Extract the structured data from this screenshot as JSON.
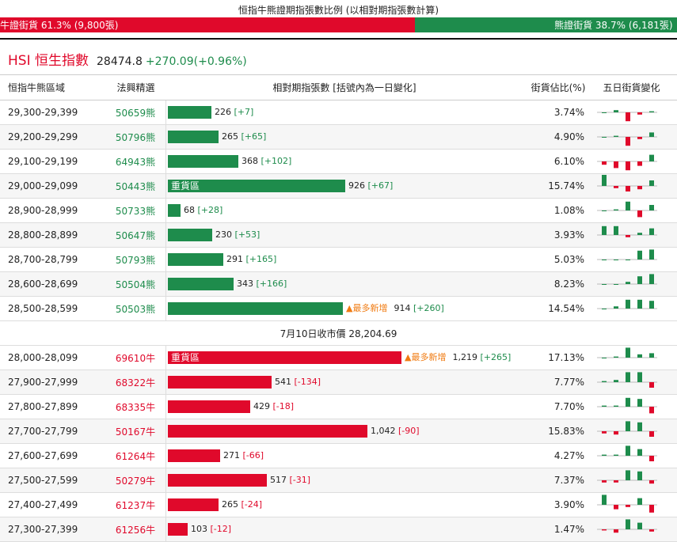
{
  "header": {
    "title": "恒指牛熊證期指張數比例 (以相對期指張數計算)",
    "bull_label": "牛證街貨 61.3% (9,800張)",
    "bear_label": "熊證街貨 38.7% (6,181張)",
    "bull_pct": 61.3,
    "bear_pct": 38.7
  },
  "index": {
    "name": "HSI 恒生指數",
    "price": "28474.8",
    "change": "+270.09(+0.96%)"
  },
  "columns": [
    "恒指牛熊區域",
    "法興精選",
    "相對期指張數 [括號內為一日變化]",
    "街貨佔比(%)",
    "五日街貨變化"
  ],
  "bear_rows": [
    {
      "range": "29,300-29,399",
      "code": "50659熊",
      "qty": 226,
      "qty_text": "226",
      "chg": "[+7]",
      "chg_sign": "pos",
      "pct": "3.74%",
      "spark": [
        0,
        2,
        -8,
        -2,
        1
      ]
    },
    {
      "range": "29,200-29,299",
      "code": "50796熊",
      "qty": 265,
      "qty_text": "265",
      "chg": "[+65]",
      "chg_sign": "pos",
      "pct": "4.90%",
      "spark": [
        0,
        1,
        -8,
        -2,
        4
      ]
    },
    {
      "range": "29,100-29,199",
      "code": "64943熊",
      "qty": 368,
      "qty_text": "368",
      "chg": "[+102]",
      "chg_sign": "pos",
      "pct": "6.10%",
      "spark": [
        -3,
        -6,
        -8,
        -4,
        6
      ]
    },
    {
      "range": "29,000-29,099",
      "code": "50443熊",
      "qty": 926,
      "qty_text": "926",
      "chg": "[+67]",
      "chg_sign": "pos",
      "pct": "15.74%",
      "spark": [
        10,
        -2,
        -5,
        -3,
        5
      ]
    },
    {
      "range": "28,900-28,999",
      "code": "50733熊",
      "qty": 68,
      "qty_text": "68",
      "chg": "[+28]",
      "chg_sign": "pos",
      "pct": "1.08%",
      "spark": [
        0,
        1,
        8,
        -6,
        5
      ]
    },
    {
      "range": "28,800-28,899",
      "code": "50647熊",
      "qty": 230,
      "qty_text": "230",
      "chg": "[+53]",
      "chg_sign": "pos",
      "pct": "3.93%",
      "spark": [
        8,
        8,
        -2,
        2,
        6
      ]
    },
    {
      "range": "28,700-28,799",
      "code": "50793熊",
      "qty": 291,
      "qty_text": "291",
      "chg": "[+165]",
      "chg_sign": "pos",
      "pct": "5.03%",
      "spark": [
        0,
        0,
        0,
        8,
        9
      ]
    },
    {
      "range": "28,600-28,699",
      "code": "50504熊",
      "qty": 343,
      "qty_text": "343",
      "chg": "[+166]",
      "chg_sign": "pos",
      "pct": "8.23%",
      "spark": [
        0,
        0,
        2,
        7,
        9
      ]
    },
    {
      "range": "28,500-28,599",
      "code": "50503熊",
      "qty": 914,
      "qty_text": "914",
      "chg": "[+260]",
      "chg_sign": "pos",
      "pct": "14.54%",
      "newest": "最多新增",
      "spark": [
        0,
        2,
        8,
        8,
        7
      ]
    }
  ],
  "close_label": "7月10日收市價 28,204.69",
  "zone_label": "重貨區",
  "newest_label": "最多新增",
  "bull_rows": [
    {
      "range": "28,000-28,099",
      "code": "69610牛",
      "qty": 1219,
      "qty_text": "1,219",
      "chg": "[+265]",
      "chg_sign": "pos",
      "pct": "17.13%",
      "newest": "最多新增",
      "zone": true,
      "spark": [
        0,
        1,
        9,
        3,
        4
      ]
    },
    {
      "range": "27,900-27,999",
      "code": "68322牛",
      "qty": 541,
      "qty_text": "541",
      "chg": "[-134]",
      "chg_sign": "neg",
      "pct": "7.77%",
      "spark": [
        1,
        2,
        9,
        9,
        -5
      ]
    },
    {
      "range": "27,800-27,899",
      "code": "68335牛",
      "qty": 429,
      "qty_text": "429",
      "chg": "[-18]",
      "chg_sign": "neg",
      "pct": "7.70%",
      "spark": [
        1,
        1,
        8,
        7,
        -6
      ]
    },
    {
      "range": "27,700-27,799",
      "code": "50167牛",
      "qty": 1042,
      "qty_text": "1,042",
      "chg": "[-90]",
      "chg_sign": "neg",
      "pct": "15.83%",
      "spark": [
        -2,
        -3,
        9,
        8,
        -5
      ]
    },
    {
      "range": "27,600-27,699",
      "code": "61264牛",
      "qty": 271,
      "qty_text": "271",
      "chg": "[-66]",
      "chg_sign": "neg",
      "pct": "4.27%",
      "spark": [
        1,
        1,
        9,
        6,
        -5
      ]
    },
    {
      "range": "27,500-27,599",
      "code": "50279牛",
      "qty": 517,
      "qty_text": "517",
      "chg": "[-31]",
      "chg_sign": "neg",
      "pct": "7.37%",
      "spark": [
        -2,
        -2,
        9,
        8,
        -3
      ]
    },
    {
      "range": "27,400-27,499",
      "code": "61237牛",
      "qty": 265,
      "qty_text": "265",
      "chg": "[-24]",
      "chg_sign": "neg",
      "pct": "3.90%",
      "spark": [
        9,
        -4,
        -2,
        6,
        -7
      ]
    },
    {
      "range": "27,300-27,399",
      "code": "61256牛",
      "qty": 103,
      "qty_text": "103",
      "chg": "[-12]",
      "chg_sign": "neg",
      "pct": "1.47%",
      "spark": [
        -1,
        -3,
        9,
        6,
        -2
      ]
    }
  ],
  "colors": {
    "bull": "#e0092b",
    "bear": "#1e8c4c",
    "newest": "#f07b12"
  }
}
